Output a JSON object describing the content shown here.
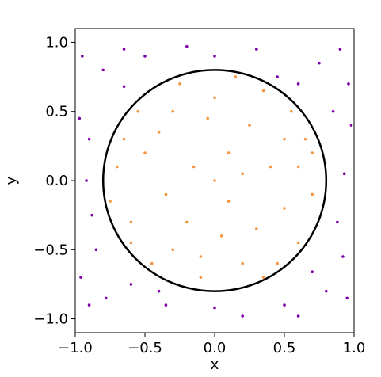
{
  "chart_data": {
    "type": "scatter",
    "xlabel": "x",
    "ylabel": "y",
    "xlim": [
      -1.0,
      1.0
    ],
    "ylim": [
      -1.1,
      1.1
    ],
    "xticks": [
      {
        "value": -1.0,
        "label": "−1.0"
      },
      {
        "value": -0.5,
        "label": "−0.5"
      },
      {
        "value": 0,
        "label": "0.0"
      },
      {
        "value": 0.5,
        "label": "0.5"
      },
      {
        "value": 1.0,
        "label": "1.0"
      }
    ],
    "yticks": [
      {
        "value": -1.0,
        "label": "−1.0"
      },
      {
        "value": -0.5,
        "label": "−0.5"
      },
      {
        "value": 0,
        "label": "0.0"
      },
      {
        "value": 0.5,
        "label": "0.5"
      },
      {
        "value": 1.0,
        "label": "1.0"
      }
    ],
    "grid": false,
    "circle": {
      "center": [
        0,
        0
      ],
      "radius": 0.8,
      "color": "#000000"
    },
    "series": [
      {
        "color": "#f5953d",
        "x": [
          0.1,
          -0.3,
          0.5,
          -0.6,
          0.2,
          0.65,
          -0.1,
          0.35,
          -0.5,
          0.0,
          0.4,
          -0.2,
          0.7,
          -0.7,
          0.15,
          -0.45,
          0.55,
          -0.25,
          0.3,
          -0.55,
          0.05,
          0.6,
          -0.35,
          0.25,
          -0.05,
          -0.75,
          0.45,
          -0.15,
          0.7,
          -0.6,
          0.2,
          -0.4,
          0.1,
          0.5,
          -0.3,
          0.0,
          -0.65,
          0.35,
          -0.1,
          0.6
        ],
        "y": [
          0.2,
          0.5,
          -0.2,
          -0.3,
          -0.6,
          0.3,
          -0.7,
          0.65,
          0.2,
          0.0,
          0.1,
          -0.3,
          -0.1,
          0.1,
          0.75,
          -0.6,
          0.5,
          0.7,
          -0.35,
          0.5,
          -0.4,
          -0.45,
          -0.1,
          0.4,
          0.45,
          -0.15,
          -0.6,
          0.1,
          0.2,
          -0.45,
          0.05,
          0.35,
          -0.15,
          0.3,
          -0.5,
          0.6,
          0.3,
          -0.7,
          -0.55,
          0.1
        ]
      },
      {
        "color": "#8000a8",
        "x": [
          -0.95,
          0.9,
          -0.9,
          0.95,
          0.0,
          0.0,
          -0.92,
          0.93,
          0.6,
          -0.65,
          0.7,
          -0.6,
          0.85,
          -0.85,
          0.3,
          -0.35,
          0.98,
          -0.97,
          0.88,
          -0.88,
          0.5,
          -0.5,
          0.2,
          -0.2,
          0.75,
          -0.8,
          0.8,
          -0.78,
          0.96,
          -0.96,
          0.6,
          -0.65,
          0.92,
          -0.9,
          0.45,
          -0.4
        ],
        "y": [
          0.9,
          0.95,
          -0.9,
          -0.85,
          0.9,
          -0.92,
          0.0,
          0.05,
          0.7,
          0.68,
          -0.66,
          -0.75,
          0.5,
          -0.5,
          0.95,
          -0.9,
          0.4,
          0.45,
          -0.3,
          -0.25,
          -0.9,
          0.9,
          -0.98,
          0.97,
          0.85,
          0.8,
          -0.8,
          -0.85,
          0.7,
          -0.7,
          -0.98,
          0.95,
          -0.55,
          0.3,
          0.75,
          -0.8
        ]
      }
    ]
  }
}
